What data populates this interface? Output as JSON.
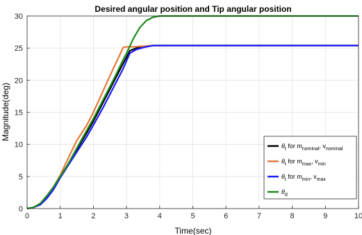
{
  "chart_data": {
    "type": "line",
    "title": "Desired angular position and Tip angular position",
    "xlabel": "Time(sec)",
    "ylabel": "Magnitude(deg)",
    "xlim": [
      0,
      10
    ],
    "ylim": [
      0,
      30
    ],
    "xticks": [
      0,
      1,
      2,
      3,
      4,
      5,
      6,
      7,
      8,
      9,
      10
    ],
    "yticks": [
      0,
      5,
      10,
      15,
      20,
      25,
      30
    ],
    "grid": true,
    "legend_position": "bottom-right",
    "series": [
      {
        "name": "θt for mnominal, vnominal",
        "legend": {
          "base": "θ",
          "sub": "t",
          "mid": " for m",
          "sub2": "nominal",
          "mid2": ", v",
          "sub3": "nominal"
        },
        "color": "#000000",
        "x": [
          0,
          0.2,
          0.4,
          0.6,
          0.8,
          1.0,
          1.2,
          1.5,
          1.8,
          2.0,
          2.3,
          2.6,
          2.9,
          3.0,
          3.1,
          3.3,
          3.6,
          3.8,
          4.0,
          5,
          6,
          7,
          8,
          9,
          10
        ],
        "y": [
          0,
          0.2,
          0.8,
          2.0,
          3.4,
          5.0,
          6.6,
          9.2,
          11.8,
          13.6,
          16.6,
          19.6,
          22.6,
          23.6,
          24.6,
          25.0,
          25.3,
          25.4,
          25.4,
          25.4,
          25.4,
          25.4,
          25.4,
          25.4,
          25.4
        ]
      },
      {
        "name": "θt for mmax, vmin",
        "legend": {
          "base": "θ",
          "sub": "t",
          "mid": " for m",
          "sub2": "max",
          "mid2": ", v",
          "sub3": "min"
        },
        "color": "#e8773a",
        "x": [
          0,
          0.2,
          0.4,
          0.6,
          0.8,
          1.0,
          1.2,
          1.5,
          1.8,
          2.0,
          2.3,
          2.6,
          2.8,
          2.9,
          3.0,
          3.2,
          3.5,
          3.8,
          4.0,
          5,
          6,
          7,
          8,
          9,
          10
        ],
        "y": [
          0,
          0.2,
          0.8,
          2.0,
          3.4,
          5.2,
          7.4,
          10.6,
          13.0,
          15.0,
          18.4,
          21.8,
          24.0,
          25.1,
          25.2,
          25.2,
          25.3,
          25.4,
          25.4,
          25.4,
          25.4,
          25.4,
          25.4,
          25.4,
          25.4
        ]
      },
      {
        "name": "θt for mmin, vmax",
        "legend": {
          "base": "θ",
          "sub": "t",
          "mid": " for m",
          "sub2": "min",
          "mid2": ", v",
          "sub3": "max"
        },
        "color": "#1a1aff",
        "x": [
          0,
          0.2,
          0.4,
          0.6,
          0.8,
          1.0,
          1.2,
          1.5,
          1.8,
          2.0,
          2.3,
          2.6,
          2.9,
          3.0,
          3.1,
          3.3,
          3.6,
          3.8,
          4.0,
          5,
          6,
          7,
          8,
          9,
          10
        ],
        "y": [
          0,
          0.2,
          0.6,
          1.6,
          3.0,
          4.8,
          6.4,
          8.8,
          11.2,
          13.0,
          15.8,
          18.8,
          21.8,
          23.0,
          24.2,
          24.8,
          25.2,
          25.4,
          25.4,
          25.4,
          25.4,
          25.4,
          25.4,
          25.4,
          25.4
        ]
      },
      {
        "name": "θd",
        "legend": {
          "base": "θ",
          "sub": "d",
          "mid": "",
          "sub2": "",
          "mid2": "",
          "sub3": ""
        },
        "color": "#1a8a1a",
        "x": [
          0,
          0.2,
          0.4,
          0.6,
          0.8,
          1.0,
          1.2,
          1.5,
          1.8,
          2.0,
          2.3,
          2.6,
          2.9,
          3.0,
          3.2,
          3.4,
          3.6,
          3.8,
          4.0,
          5,
          6,
          7,
          8,
          9,
          10
        ],
        "y": [
          0,
          0.2,
          0.8,
          2.0,
          3.4,
          5.0,
          6.6,
          9.4,
          12.2,
          14.0,
          17.0,
          20.0,
          23.2,
          24.2,
          26.4,
          28.2,
          29.3,
          29.8,
          30.0,
          30.0,
          30.0,
          30.0,
          30.0,
          30.0,
          30.0
        ]
      }
    ]
  }
}
